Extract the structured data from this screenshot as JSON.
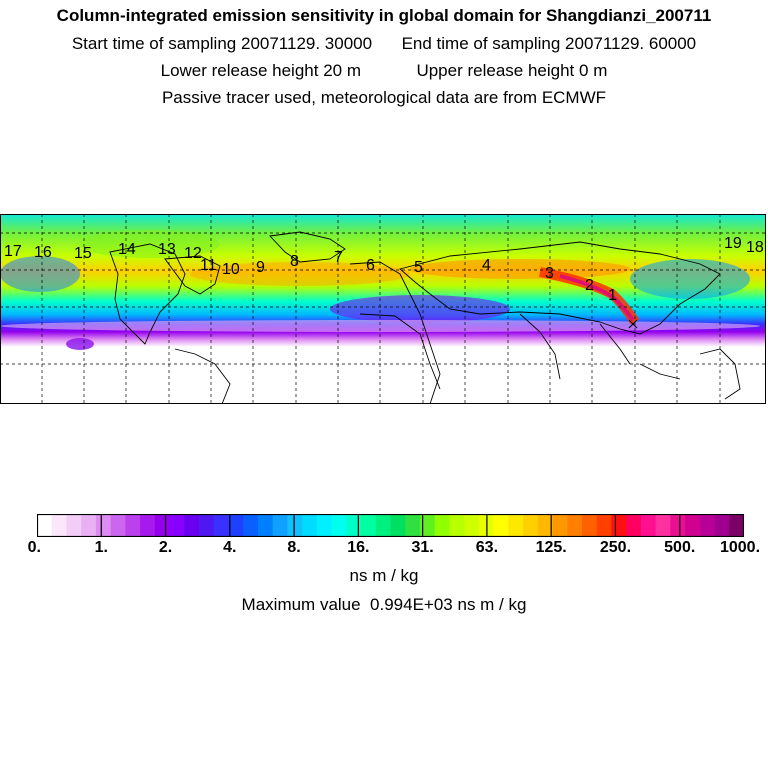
{
  "header": {
    "title": "Column-integrated emission sensitivity in global domain for Shangdianzi_200711",
    "start_label": "Start time of sampling",
    "start_value": "20071129. 30000",
    "end_label": "End time of sampling",
    "end_value": "20071129. 60000",
    "lower_label": "Lower release height",
    "lower_value": "20 m",
    "upper_label": "Upper release height",
    "upper_value": "0 m",
    "note": "Passive tracer used, meteorological data are from ECMWF"
  },
  "map": {
    "trajectory_labels": [
      "1",
      "2",
      "3",
      "4",
      "5",
      "6",
      "7",
      "8",
      "9",
      "10",
      "11",
      "12",
      "13",
      "14",
      "15",
      "16",
      "17",
      "18",
      "19"
    ]
  },
  "colorbar": {
    "tick_labels": [
      "0.",
      "1.",
      "2.",
      "4.",
      "8.",
      "16.",
      "31.",
      "63.",
      "125.",
      "250.",
      "500.",
      "1000."
    ],
    "colors": [
      "#ffffff",
      "#fbe6fb",
      "#f2cdf6",
      "#e9b0f4",
      "#dd8cf1",
      "#cc66ee",
      "#bb40ee",
      "#a61aee",
      "#9400ee",
      "#8800ff",
      "#6a00f0",
      "#5018f0",
      "#3a30ff",
      "#2040ff",
      "#0a60ff",
      "#0080ff",
      "#10a0ff",
      "#10c0ff",
      "#00dcff",
      "#00f0ff",
      "#00ffee",
      "#00ffc8",
      "#00ffa0",
      "#00f080",
      "#00e060",
      "#30e040",
      "#60f020",
      "#90ff00",
      "#b8ff00",
      "#d0ff00",
      "#e8ff00",
      "#ffff00",
      "#ffe800",
      "#ffd000",
      "#ffb800",
      "#ff9800",
      "#ff8000",
      "#ff6000",
      "#ff4000",
      "#ff1010",
      "#ff0060",
      "#ff1090",
      "#ff30a0",
      "#e81090",
      "#d00090",
      "#b80098",
      "#a00090",
      "#7a0066"
    ]
  },
  "unit_label": "ns m / kg",
  "max_label": "Maximum value",
  "max_value": "0.994E+03 ns m / kg"
}
